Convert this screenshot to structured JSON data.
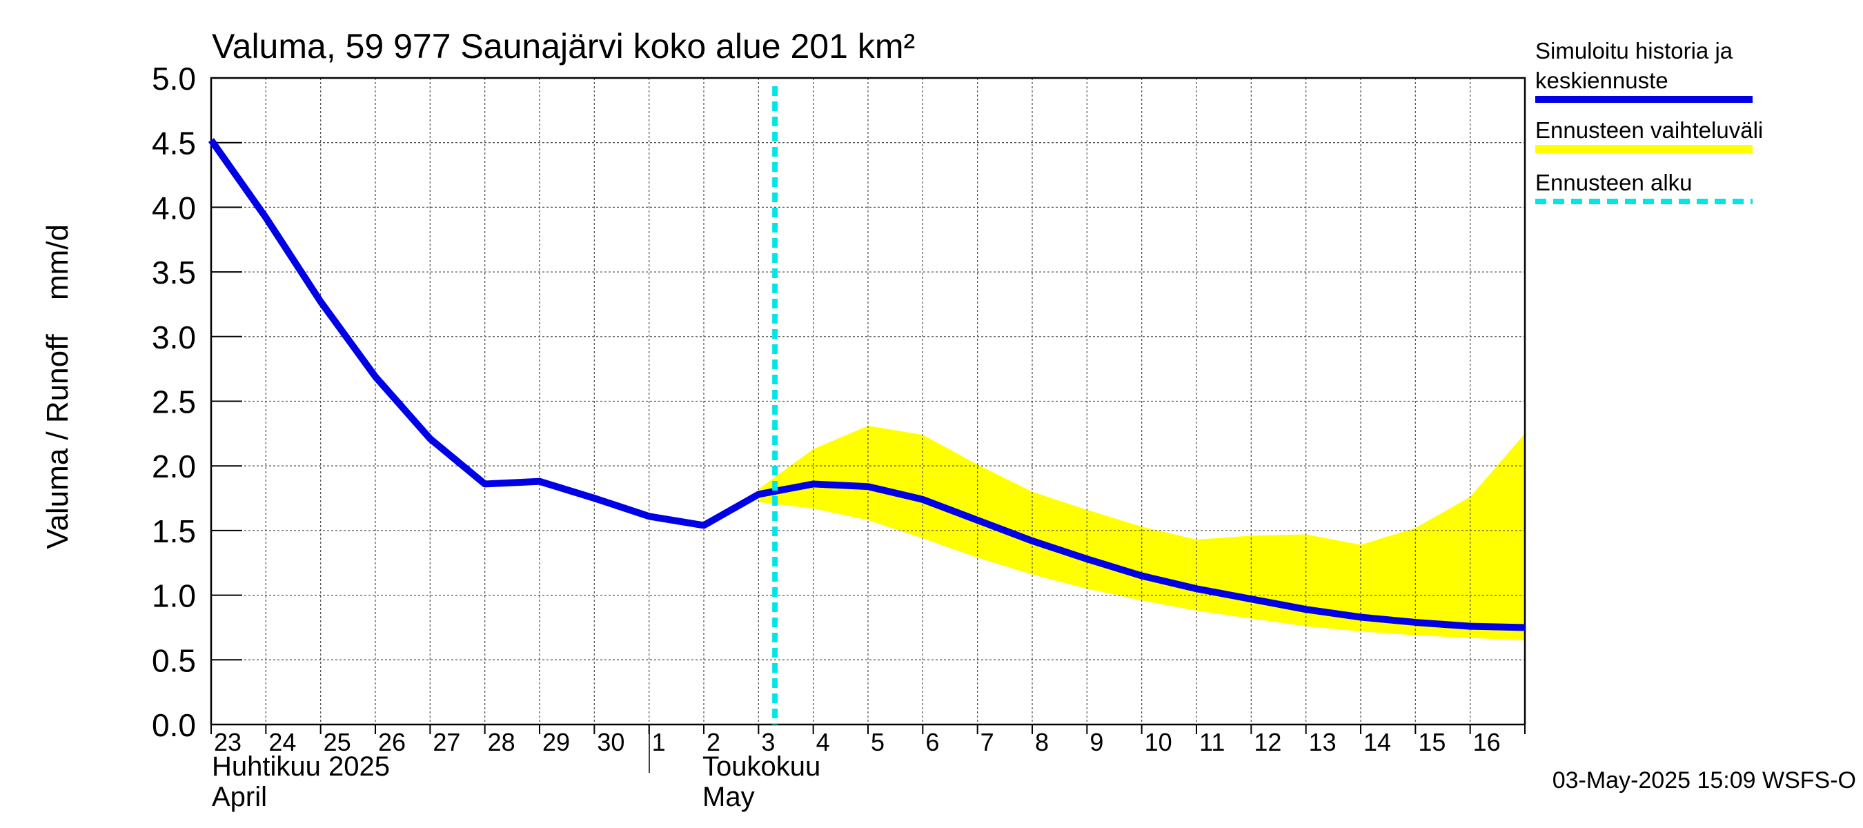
{
  "chart_data": {
    "type": "line",
    "title": "Valuma, 59 977 Saunajärvi koko alue 201 km²",
    "ylabel_left": "Valuma / Runoff",
    "ylabel_right": "mm/d",
    "ylim": [
      0,
      5
    ],
    "yticks": [
      "0.0",
      "0.5",
      "1.0",
      "1.5",
      "2.0",
      "2.5",
      "3.0",
      "3.5",
      "4.0",
      "4.5",
      "5.0"
    ],
    "grid": true,
    "x_day_labels": [
      "23",
      "24",
      "25",
      "26",
      "27",
      "28",
      "29",
      "30",
      "1",
      "2",
      "3",
      "4",
      "5",
      "6",
      "7",
      "8",
      "9",
      "10",
      "11",
      "12",
      "13",
      "14",
      "15",
      "16"
    ],
    "month_labels": [
      {
        "line1": "Huhtikuu  2025",
        "line2": "April"
      },
      {
        "line1": "Toukokuu",
        "line2": "May"
      }
    ],
    "forecast_start_day": 10.3,
    "series": [
      {
        "name": "Simuloitu historia ja keskiennuste",
        "color": "#0000e6",
        "x": [
          0,
          1,
          2,
          3,
          4,
          5,
          6,
          7,
          8,
          9,
          10,
          11,
          12,
          13,
          14,
          15,
          16,
          17,
          18,
          19,
          20,
          21,
          22,
          23,
          24
        ],
        "values": [
          4.52,
          3.92,
          3.27,
          2.69,
          2.21,
          1.86,
          1.88,
          1.75,
          1.61,
          1.54,
          1.78,
          1.86,
          1.84,
          1.74,
          1.58,
          1.42,
          1.28,
          1.15,
          1.05,
          0.97,
          0.89,
          0.83,
          0.79,
          0.76,
          0.75
        ]
      }
    ],
    "band": {
      "name": "Ennusteen vaihteluväli",
      "color": "#ffff00",
      "x": [
        10,
        11,
        12,
        13,
        14,
        15,
        16,
        17,
        18,
        19,
        20,
        21,
        22,
        23,
        24
      ],
      "upper": [
        1.82,
        2.13,
        2.31,
        2.24,
        2.01,
        1.8,
        1.66,
        1.53,
        1.43,
        1.46,
        1.47,
        1.39,
        1.52,
        1.76,
        2.25
      ],
      "lower": [
        1.72,
        1.67,
        1.58,
        1.44,
        1.29,
        1.16,
        1.05,
        0.96,
        0.88,
        0.82,
        0.76,
        0.72,
        0.69,
        0.67,
        0.65
      ]
    },
    "legend": [
      {
        "label_lines": [
          "Simuloitu historia ja",
          "keskiennuste"
        ],
        "color": "#0000e6",
        "style": "solid"
      },
      {
        "label_lines": [
          "Ennusteen vaihteluväli"
        ],
        "color": "#ffff00",
        "style": "solid"
      },
      {
        "label_lines": [
          "Ennusteen alku"
        ],
        "color": "#00e6e6",
        "style": "dashed"
      }
    ],
    "legend_position": "right",
    "footer": "03-May-2025 15:09 WSFS-O"
  }
}
